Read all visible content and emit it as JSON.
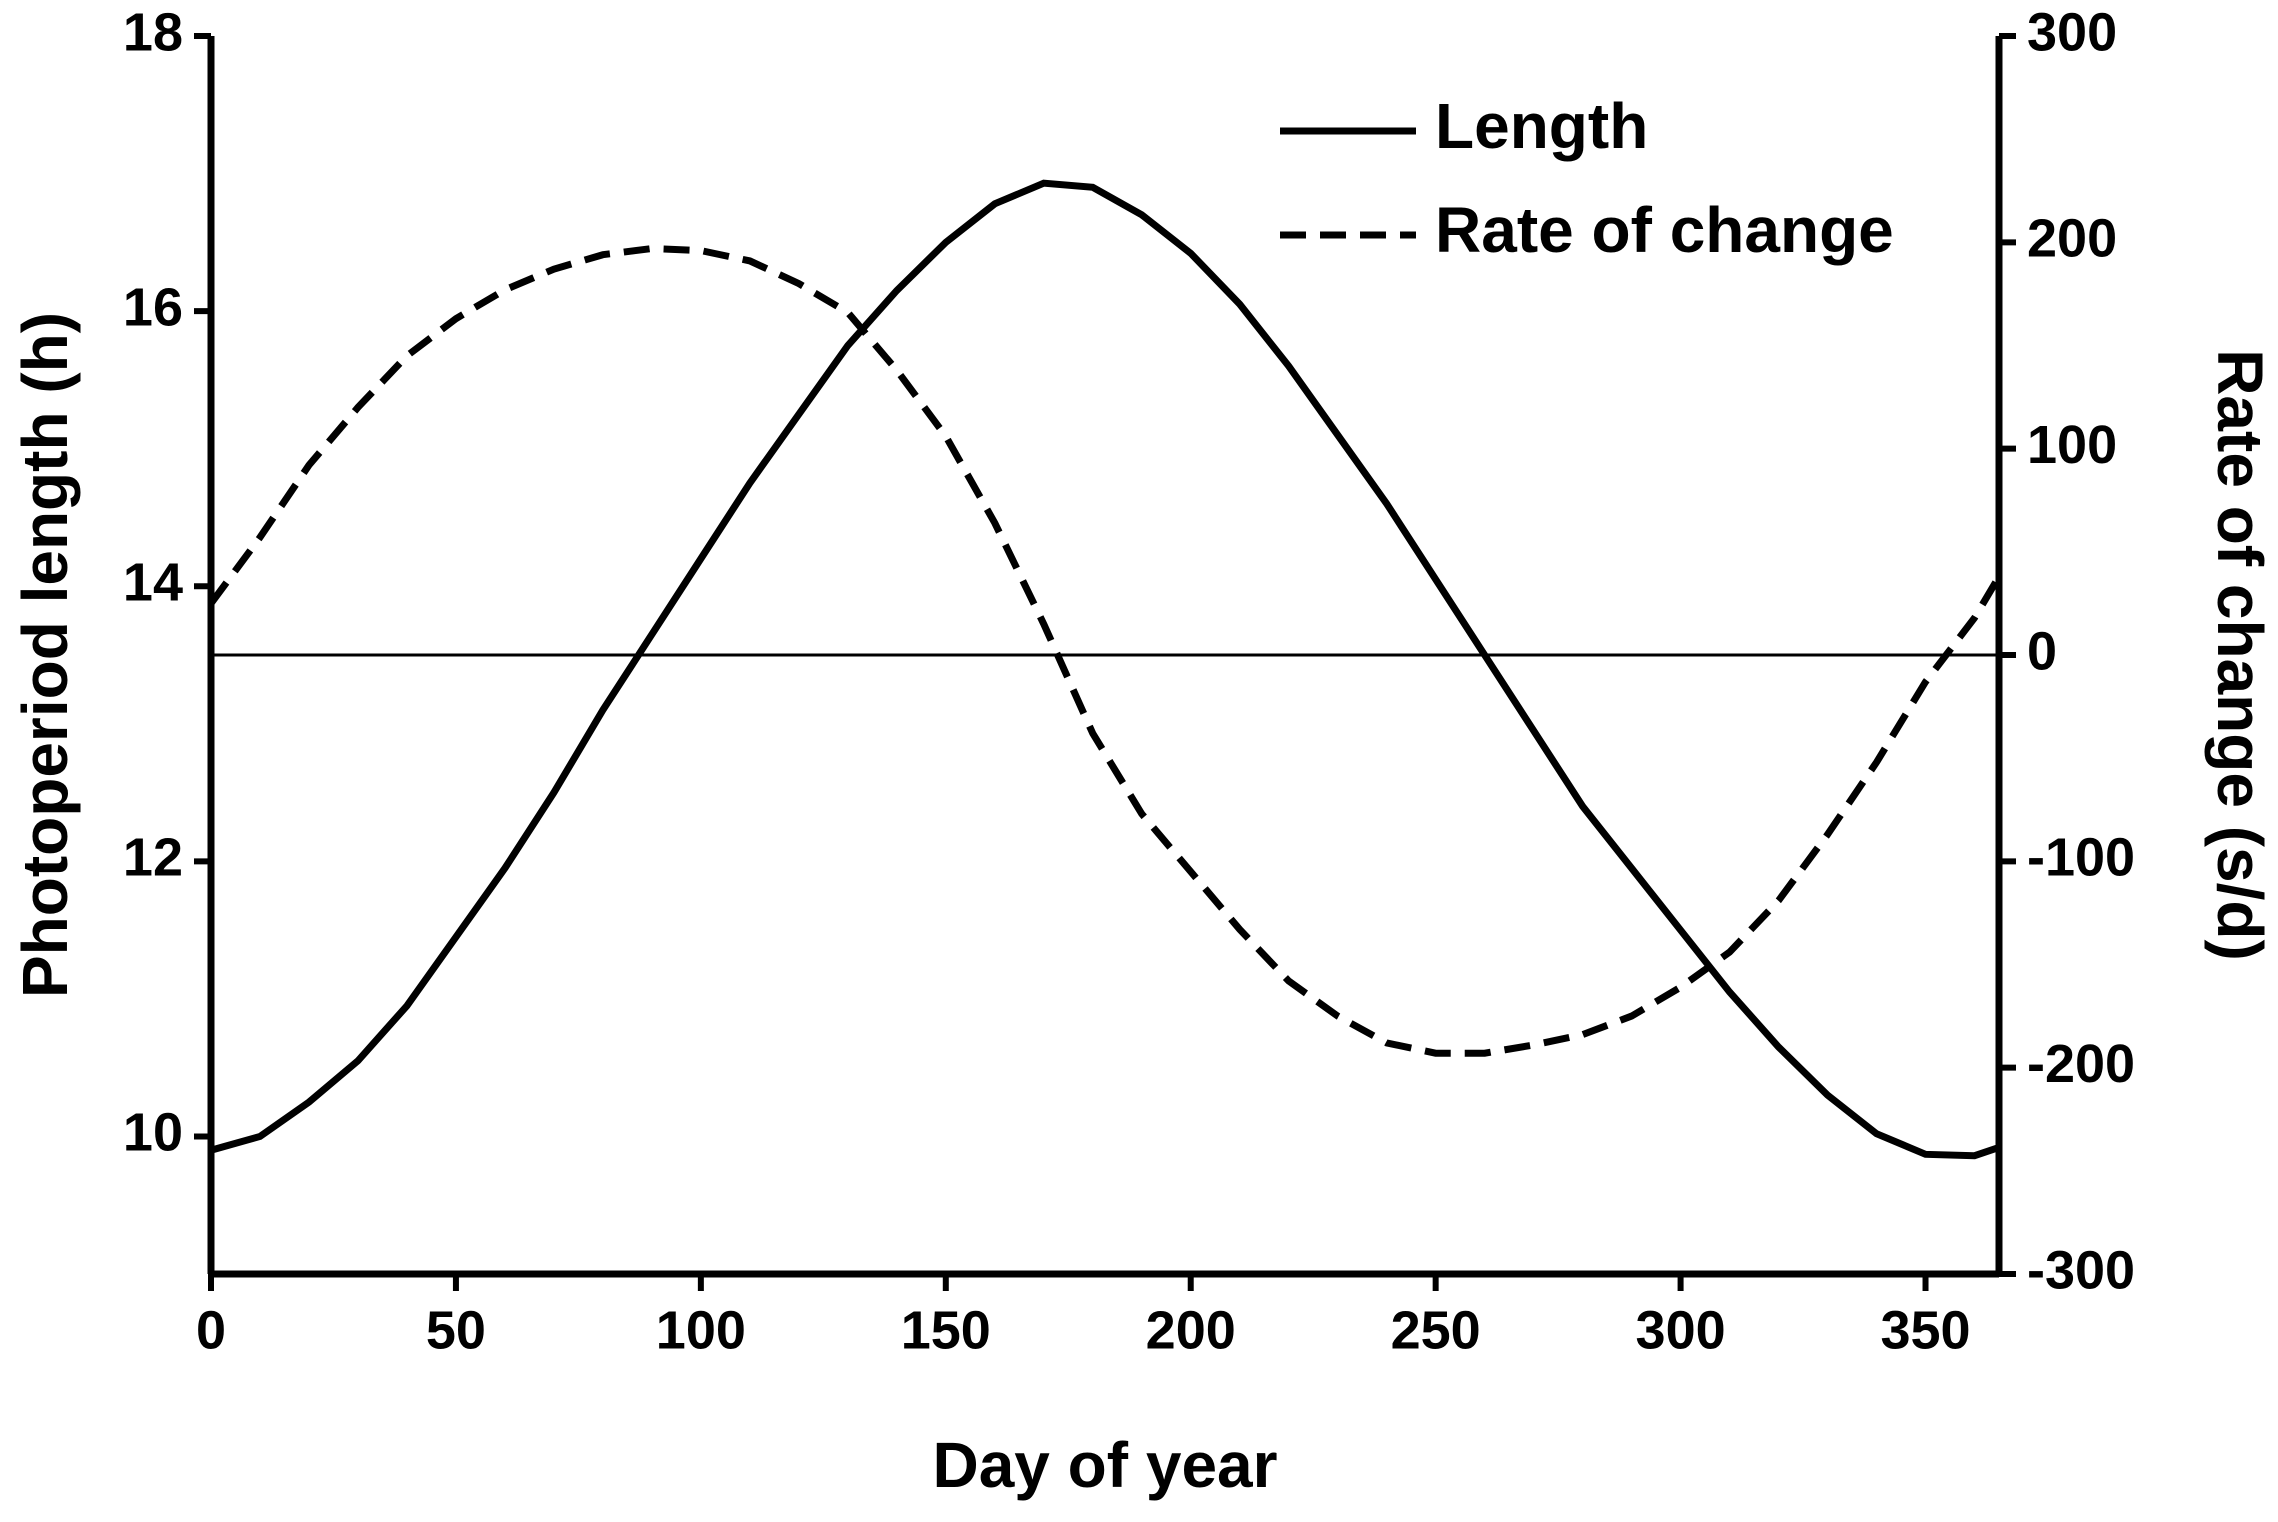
{
  "chart_data": {
    "type": "line",
    "xlabel": "Day of year",
    "ylabel": "Photoperiod length (h)",
    "y2label": "Rate of change (s/d)",
    "x": [
      0,
      10,
      20,
      30,
      40,
      50,
      60,
      70,
      80,
      90,
      100,
      110,
      120,
      130,
      140,
      150,
      160,
      170,
      180,
      190,
      200,
      210,
      220,
      230,
      240,
      250,
      260,
      270,
      280,
      290,
      300,
      310,
      320,
      330,
      340,
      350,
      360,
      365
    ],
    "series": [
      {
        "name": "Length",
        "color": "#000000",
        "dash": "solid",
        "values": [
          9.9,
          10.0,
          10.25,
          10.55,
          10.95,
          11.45,
          11.95,
          12.5,
          13.1,
          13.65,
          14.2,
          14.75,
          15.25,
          15.75,
          16.15,
          16.5,
          16.78,
          16.93,
          16.9,
          16.7,
          16.42,
          16.05,
          15.6,
          15.1,
          14.6,
          14.05,
          13.5,
          12.95,
          12.4,
          11.95,
          11.5,
          11.05,
          10.65,
          10.3,
          10.02,
          9.87,
          9.86,
          9.92
        ]
      },
      {
        "name": "Rate of change",
        "color": "#000000",
        "dash": "dashed",
        "axis": "y2",
        "values": [
          25,
          57,
          92,
          120,
          145,
          163,
          177,
          187,
          194,
          197,
          196,
          191,
          180,
          166,
          138,
          106,
          64,
          15,
          -38,
          -77,
          -105,
          -133,
          -158,
          -175,
          -188,
          -193,
          -193,
          -189,
          -184,
          -175,
          -161,
          -144,
          -119,
          -87,
          -52,
          -13,
          18,
          38
        ]
      }
    ],
    "xlim": [
      0,
      365
    ],
    "xticks": [
      0,
      50,
      100,
      150,
      200,
      250,
      300,
      350
    ],
    "ylim": [
      9,
      18
    ],
    "yticks": [
      10,
      12,
      14,
      16,
      18
    ],
    "y2lim": [
      -300,
      300
    ],
    "y2ticks": [
      -300,
      -200,
      -100,
      0,
      100,
      200,
      300
    ],
    "zero_line": true,
    "legend": "upper right"
  }
}
